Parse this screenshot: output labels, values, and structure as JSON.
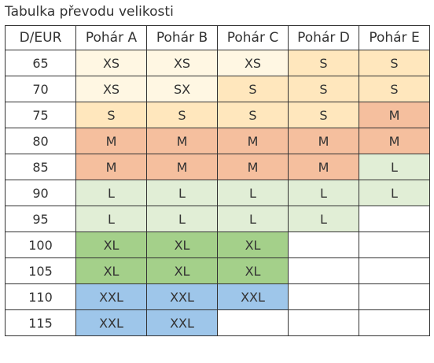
{
  "title": "Tabulka převodu velikosti",
  "columns": [
    "D/EUR",
    "Pohár A",
    "Pohár B",
    "Pohár C",
    "Pohár D",
    "Pohár E"
  ],
  "rows": [
    {
      "band": "65",
      "cells": [
        "XS",
        "XS",
        "XS",
        "S",
        "S"
      ]
    },
    {
      "band": "70",
      "cells": [
        "XS",
        "SX",
        "S",
        "S",
        "S"
      ]
    },
    {
      "band": "75",
      "cells": [
        "S",
        "S",
        "S",
        "S",
        "M"
      ]
    },
    {
      "band": "80",
      "cells": [
        "M",
        "M",
        "M",
        "M",
        "M"
      ]
    },
    {
      "band": "85",
      "cells": [
        "M",
        "M",
        "M",
        "M",
        "L"
      ]
    },
    {
      "band": "90",
      "cells": [
        "L",
        "L",
        "L",
        "L",
        "L"
      ]
    },
    {
      "band": "95",
      "cells": [
        "L",
        "L",
        "L",
        "L",
        ""
      ]
    },
    {
      "band": "100",
      "cells": [
        "XL",
        "XL",
        "XL",
        "",
        ""
      ]
    },
    {
      "band": "105",
      "cells": [
        "XL",
        "XL",
        "XL",
        "",
        ""
      ]
    },
    {
      "band": "110",
      "cells": [
        "XXL",
        "XXL",
        "XXL",
        "",
        ""
      ]
    },
    {
      "band": "115",
      "cells": [
        "XXL",
        "XXL",
        "",
        "",
        ""
      ]
    }
  ],
  "size_colors": {
    "XS": "#fff7e3",
    "SX": "#fff7e3",
    "S": "#ffe7bd",
    "M": "#f5bf9e",
    "L": "#e1eed6",
    "XL": "#a4d08a",
    "XXL": "#9ec6ea",
    "empty": "#ffffff"
  }
}
